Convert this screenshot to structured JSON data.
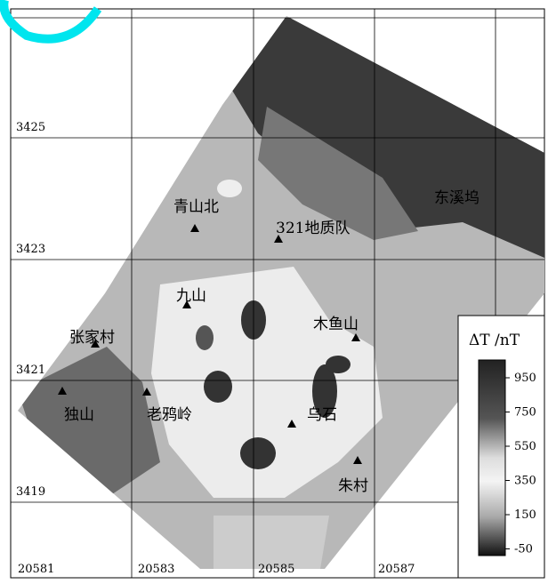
{
  "axes": {
    "y_labels": [
      "3425",
      "3423",
      "3421",
      "3419"
    ],
    "x_labels": [
      "20581",
      "20583",
      "20585",
      "20587"
    ]
  },
  "places": [
    "青山北",
    "321地质队",
    "东溪坞",
    "九山",
    "张家村",
    "木鱼山",
    "独山",
    "老鸦岭",
    "乌石",
    "朱村"
  ],
  "legend": {
    "title": "ΔT /nT",
    "labels": [
      "950",
      "750",
      "550",
      "350",
      "150",
      "-50"
    ]
  }
}
